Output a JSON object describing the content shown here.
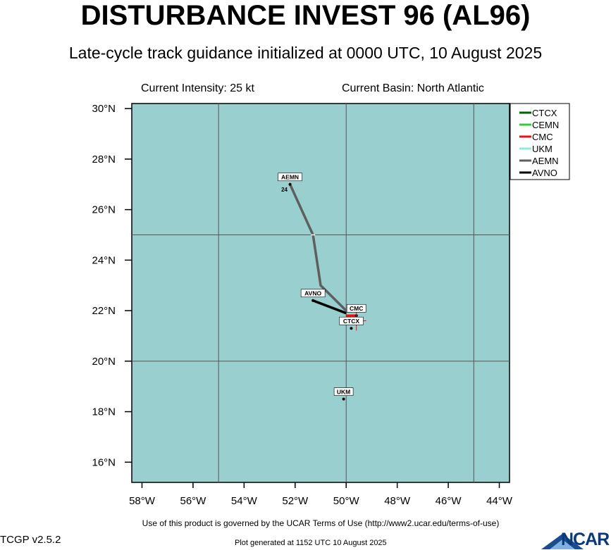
{
  "header": {
    "title": "DISTURBANCE INVEST 96 (AL96)",
    "subtitle": "Late-cycle track guidance initialized at 0000 UTC, 10 August 2025",
    "intensity": "Current Intensity: 25 kt",
    "basin": "Current Basin: North Atlantic"
  },
  "footer": {
    "terms": "Use of this product is governed by the UCAR Terms of Use (http://www2.ucar.edu/terms-of-use)",
    "version": "TCGP v2.5.2",
    "generated": "Plot generated at 1152 UTC   10 August 2025",
    "logo": "NCAR"
  },
  "colors": {
    "ocean": "#99cfcf",
    "grid": "#555555",
    "ctcx": "#006400",
    "cemn": "#33cc33",
    "cmc": "#ee1111",
    "ukm": "#88eedd",
    "aemn": "#5f5f5f",
    "avno": "#000000"
  },
  "chart_data": {
    "type": "map-track",
    "x_ticks": [
      "58°W",
      "56°W",
      "54°W",
      "52°W",
      "50°W",
      "48°W",
      "46°W",
      "44°W"
    ],
    "y_ticks": [
      "16°N",
      "18°N",
      "20°N",
      "22°N",
      "24°N",
      "26°N",
      "28°N",
      "30°N"
    ],
    "lon_range": [
      -58.4,
      -43.6
    ],
    "lat_range": [
      15.2,
      30.2
    ],
    "grid_lons": [
      -55,
      -50,
      -45
    ],
    "grid_lats": [
      20,
      25
    ],
    "legend": [
      "CTCX",
      "CEMN",
      "CMC",
      "UKM",
      "AEMN",
      "AVNO"
    ],
    "legend_placement": "top-right, outside plot",
    "current_position": {
      "lon": -49.6,
      "lat": 21.6
    },
    "tracks": [
      {
        "model": "AEMN",
        "points": [
          {
            "lon": -50.0,
            "lat": 22.0
          },
          {
            "lon": -51.0,
            "lat": 23.0
          },
          {
            "lon": -51.3,
            "lat": 25.0
          },
          {
            "lon": -52.2,
            "lat": 27.0
          }
        ],
        "label_hour": "24"
      },
      {
        "model": "AVNO",
        "points": [
          {
            "lon": -50.0,
            "lat": 21.9
          },
          {
            "lon": -51.3,
            "lat": 22.4
          }
        ]
      },
      {
        "model": "CMC",
        "points": [
          {
            "lon": -50.0,
            "lat": 21.8
          },
          {
            "lon": -49.6,
            "lat": 21.8
          }
        ]
      },
      {
        "model": "CTCX",
        "points": [
          {
            "lon": -49.8,
            "lat": 21.3
          }
        ]
      },
      {
        "model": "UKM",
        "points": [
          {
            "lon": -50.1,
            "lat": 18.5
          }
        ]
      }
    ]
  }
}
